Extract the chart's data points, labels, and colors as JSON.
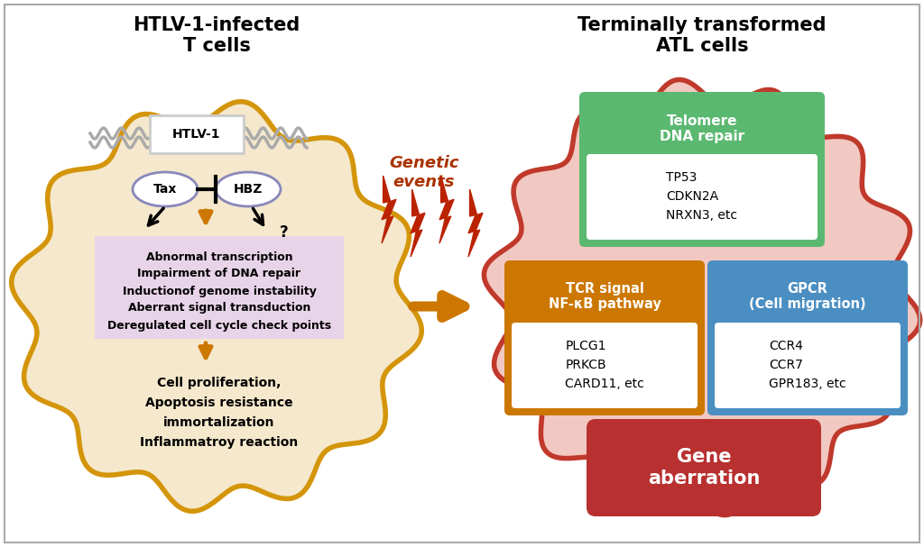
{
  "title_left": "HTLV-1-infected\nT cells",
  "title_right": "Terminally transformed\nATL cells",
  "genetic_events_text": "Genetic\nevents",
  "left_cell_border_color": "#D4950A",
  "left_cell_fill": "#F5E8CC",
  "right_cell_border_color": "#C0392B",
  "right_cell_fill": "#F2C8C2",
  "htlv1_label": "HTLV-1",
  "tax_label": "Tax",
  "hbz_label": "HBZ",
  "purple_ellipse_color": "#8888BB",
  "pink_box_color": "#E8D4E8",
  "peach_box_color": "#F0D8B0",
  "orange_color": "#CC7700",
  "abnormal_lines": [
    "Abnormal transcription",
    "Impairment of DNA repair",
    "Inductionof genome instability",
    "Aberrant signal transduction",
    "Deregulated cell cycle check points"
  ],
  "outcome_lines": [
    "Cell proliferation,",
    "Apoptosis resistance",
    "immortalization",
    "Inflammatroy reaction"
  ],
  "telomere_header": "Telomere\nDNA repair",
  "telomere_header_bg": "#5BB870",
  "telomere_genes": "TP53\nCDKN2A\nNRXN3, etc",
  "tcr_header": "TCR signal\nNF-κB pathway",
  "tcr_header_bg": "#CC7700",
  "tcr_genes": "PLCG1\nPRKCB\nCARD11, etc",
  "gpcr_header": "GPCR\n(Cell migration)",
  "gpcr_header_bg": "#4A8EC2",
  "gpcr_genes": "CCR4\nCCR7\nGPR183, etc",
  "gene_aberration_text": "Gene\naberration",
  "gene_aberration_bg": "#B83030",
  "background_color": "#FFFFFF",
  "lightning_color": "#BB2200",
  "genetic_events_color": "#AA3300",
  "dna_wave_color": "#AAAAAA",
  "htlv_box_color": "#CCCCCC"
}
